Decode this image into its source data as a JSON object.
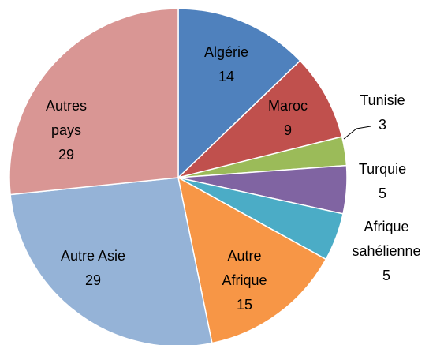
{
  "chart_data": {
    "type": "pie",
    "categories": [
      "Algérie",
      "Maroc",
      "Tunisie",
      "Turquie",
      "Afrique sahélienne",
      "Autre Afrique",
      "Autre Asie",
      "Autres pays"
    ],
    "values": [
      14,
      9,
      3,
      5,
      5,
      15,
      29,
      29
    ],
    "colors": [
      "#4f81bd",
      "#c0504d",
      "#9bbb59",
      "#8064a2",
      "#4bacc6",
      "#f79646",
      "#95b3d7",
      "#d99694"
    ]
  }
}
